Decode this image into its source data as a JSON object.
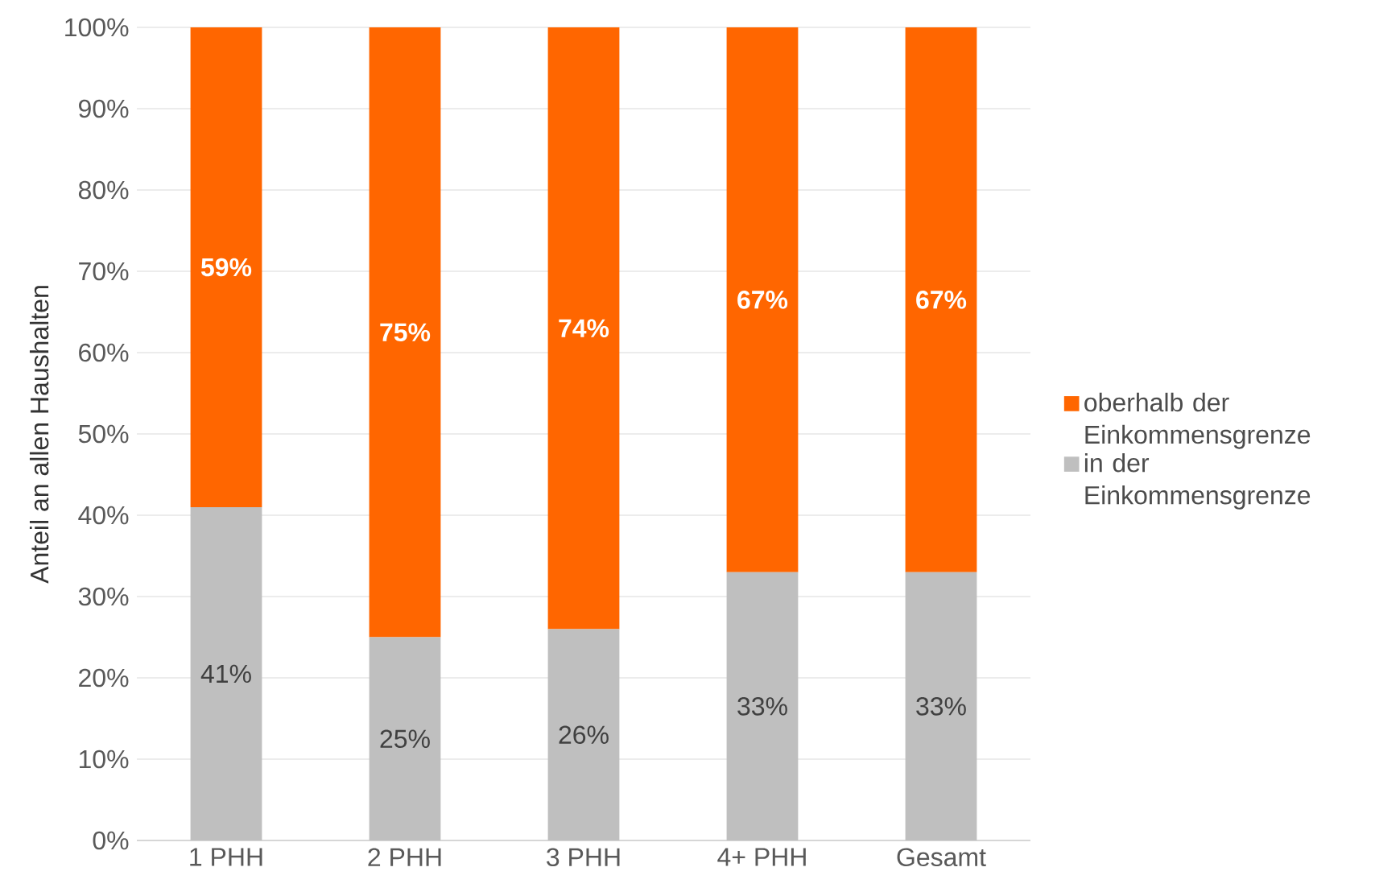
{
  "chart_data": {
    "type": "bar",
    "stacked": true,
    "ylabel": "Anteil an allen Haushalten",
    "categories": [
      "1 PHH",
      "2 PHH",
      "3 PHH",
      "4+ PHH",
      "Gesamt"
    ],
    "series": [
      {
        "name": "in der Einkommensgrenze",
        "color": "#bfbfbf",
        "values": [
          41,
          25,
          26,
          33,
          33
        ],
        "value_labels": [
          "41%",
          "25%",
          "26%",
          "33%",
          "33%"
        ]
      },
      {
        "name": "oberhalb der Einkommensgrenze",
        "color": "#ff6600",
        "values": [
          59,
          75,
          74,
          67,
          67
        ],
        "value_labels": [
          "59%",
          "75%",
          "74%",
          "67%",
          "67%"
        ]
      }
    ],
    "ylim": [
      0,
      100
    ],
    "yticks": [
      {
        "value": 0,
        "label": "0%"
      },
      {
        "value": 10,
        "label": "10%"
      },
      {
        "value": 20,
        "label": "20%"
      },
      {
        "value": 30,
        "label": "30%"
      },
      {
        "value": 40,
        "label": "40%"
      },
      {
        "value": 50,
        "label": "50%"
      },
      {
        "value": 60,
        "label": "60%"
      },
      {
        "value": 70,
        "label": "70%"
      },
      {
        "value": 80,
        "label": "80%"
      },
      {
        "value": 90,
        "label": "90%"
      },
      {
        "value": 100,
        "label": "100%"
      }
    ],
    "grid": "y",
    "legend": "right"
  }
}
